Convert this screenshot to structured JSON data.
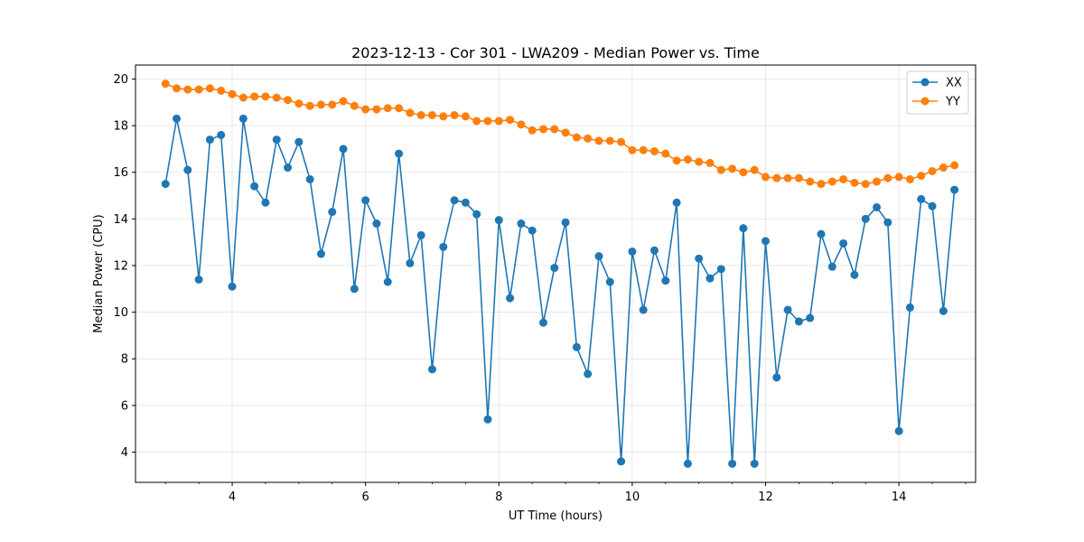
{
  "chart_data": {
    "type": "line",
    "title": "2023-12-13 - Cor 301 - LWA209 - Median Power vs. Time",
    "xlabel": "UT Time (hours)",
    "ylabel": "Median Power (CPU)",
    "xlim": [
      2.55,
      15.15
    ],
    "ylim": [
      2.7,
      20.6
    ],
    "xticks": [
      4,
      6,
      8,
      10,
      12,
      14
    ],
    "yticks": [
      4,
      6,
      8,
      10,
      12,
      14,
      16,
      18,
      20
    ],
    "minor_xtick_step": 0.5,
    "grid": true,
    "legend_position": "top-right",
    "x": [
      3.0,
      3.1667,
      3.3333,
      3.5,
      3.6667,
      3.8333,
      4.0,
      4.1667,
      4.3333,
      4.5,
      4.6667,
      4.8333,
      5.0,
      5.1667,
      5.3333,
      5.5,
      5.6667,
      5.8333,
      6.0,
      6.1667,
      6.3333,
      6.5,
      6.6667,
      6.8333,
      7.0,
      7.1667,
      7.3333,
      7.5,
      7.6667,
      7.8333,
      8.0,
      8.1667,
      8.3333,
      8.5,
      8.6667,
      8.8333,
      9.0,
      9.1667,
      9.3333,
      9.5,
      9.6667,
      9.8333,
      10.0,
      10.1667,
      10.3333,
      10.5,
      10.6667,
      10.8333,
      11.0,
      11.1667,
      11.3333,
      11.5,
      11.6667,
      11.8333,
      12.0,
      12.1667,
      12.3333,
      12.5,
      12.6667,
      12.8333,
      13.0,
      13.1667,
      13.3333,
      13.5,
      13.6667,
      13.8333,
      14.0,
      14.1667,
      14.3333,
      14.5,
      14.6667,
      14.8333
    ],
    "series": [
      {
        "name": "XX",
        "color": "#1f77b4",
        "values": [
          15.5,
          18.3,
          16.1,
          11.4,
          17.4,
          17.6,
          11.1,
          18.3,
          15.4,
          14.7,
          17.4,
          16.2,
          17.3,
          15.7,
          12.5,
          14.3,
          17.0,
          11.0,
          14.8,
          13.8,
          11.3,
          16.8,
          12.1,
          13.3,
          7.55,
          12.8,
          14.8,
          14.7,
          14.2,
          5.4,
          13.95,
          10.6,
          13.8,
          13.5,
          9.55,
          11.9,
          13.85,
          8.5,
          7.35,
          12.4,
          11.3,
          3.6,
          12.6,
          10.1,
          12.65,
          11.35,
          14.7,
          3.5,
          12.3,
          11.45,
          11.85,
          3.5,
          13.6,
          3.5,
          13.05,
          7.2,
          10.1,
          9.6,
          9.75,
          13.35,
          11.95,
          12.95,
          11.6,
          14.0,
          14.5,
          13.85,
          4.9,
          10.2,
          14.85,
          14.55,
          10.05,
          15.25
        ]
      },
      {
        "name": "YY",
        "color": "#ff7f0e",
        "values": [
          19.8,
          19.6,
          19.55,
          19.55,
          19.6,
          19.5,
          19.35,
          19.2,
          19.25,
          19.25,
          19.2,
          19.1,
          18.95,
          18.85,
          18.9,
          18.9,
          19.05,
          18.85,
          18.7,
          18.7,
          18.75,
          18.75,
          18.55,
          18.45,
          18.45,
          18.4,
          18.45,
          18.4,
          18.2,
          18.2,
          18.2,
          18.25,
          18.05,
          17.8,
          17.85,
          17.85,
          17.7,
          17.5,
          17.45,
          17.35,
          17.35,
          17.3,
          16.95,
          16.95,
          16.9,
          16.8,
          16.5,
          16.55,
          16.45,
          16.4,
          16.1,
          16.15,
          16.0,
          16.1,
          15.8,
          15.75,
          15.75,
          15.75,
          15.6,
          15.5,
          15.6,
          15.7,
          15.55,
          15.5,
          15.6,
          15.75,
          15.8,
          15.7,
          15.85,
          16.05,
          16.2,
          16.3
        ]
      }
    ]
  }
}
